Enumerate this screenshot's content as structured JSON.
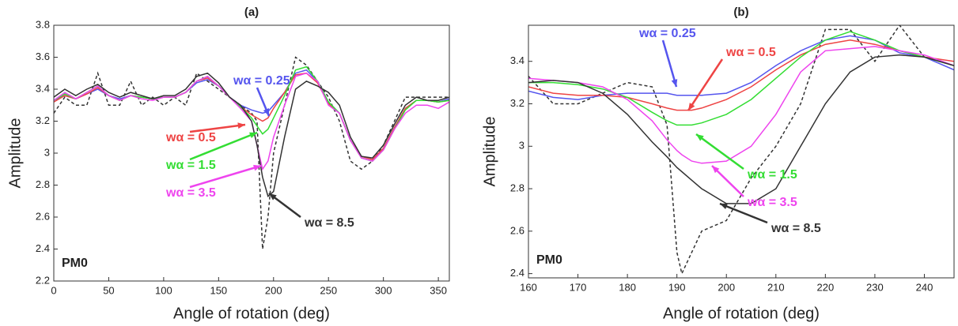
{
  "chart_data": [
    {
      "type": "line",
      "title": "(a)",
      "x_label": "Angle of rotation (deg)",
      "y_label": "Amplitude",
      "annotation": "PM0",
      "xlim": [
        0,
        360
      ],
      "xticks": [
        0,
        50,
        100,
        150,
        200,
        250,
        300,
        350
      ],
      "ylim": [
        2.2,
        3.8
      ],
      "yticks": [
        2.2,
        2.4,
        2.6,
        2.8,
        3,
        3.2,
        3.4,
        3.6,
        3.8
      ],
      "x": [
        0,
        10,
        20,
        30,
        40,
        50,
        60,
        70,
        80,
        90,
        100,
        110,
        120,
        130,
        140,
        150,
        160,
        170,
        180,
        185,
        190,
        195,
        200,
        210,
        220,
        230,
        240,
        250,
        260,
        270,
        280,
        290,
        300,
        310,
        320,
        330,
        340,
        350,
        360
      ],
      "series": [
        {
          "color": "#333333",
          "style": "dashed",
          "values": [
            3.25,
            3.35,
            3.3,
            3.3,
            3.5,
            3.3,
            3.3,
            3.45,
            3.3,
            3.35,
            3.3,
            3.35,
            3.3,
            3.5,
            3.45,
            3.4,
            3.35,
            3.3,
            3.25,
            3.2,
            2.4,
            2.6,
            3.0,
            3.3,
            3.6,
            3.55,
            3.45,
            3.35,
            3.2,
            2.95,
            2.9,
            2.95,
            3.05,
            3.2,
            3.35,
            3.35,
            3.35,
            3.35,
            3.35
          ]
        },
        {
          "name": "wα = 0.25",
          "color": "#5555ee",
          "style": "solid",
          "values": [
            3.33,
            3.36,
            3.34,
            3.37,
            3.4,
            3.36,
            3.34,
            3.36,
            3.35,
            3.34,
            3.35,
            3.35,
            3.38,
            3.44,
            3.46,
            3.42,
            3.35,
            3.3,
            3.27,
            3.26,
            3.25,
            3.26,
            3.3,
            3.38,
            3.5,
            3.52,
            3.45,
            3.32,
            3.25,
            3.08,
            2.98,
            2.96,
            3.03,
            3.16,
            3.28,
            3.33,
            3.33,
            3.32,
            3.34
          ]
        },
        {
          "name": "wα = 0.5",
          "color": "#ee4444",
          "style": "solid",
          "values": [
            3.32,
            3.36,
            3.34,
            3.37,
            3.41,
            3.36,
            3.33,
            3.36,
            3.35,
            3.34,
            3.35,
            3.35,
            3.38,
            3.45,
            3.47,
            3.42,
            3.35,
            3.29,
            3.24,
            3.22,
            3.2,
            3.22,
            3.28,
            3.38,
            3.49,
            3.5,
            3.44,
            3.31,
            3.25,
            3.08,
            2.98,
            2.96,
            3.03,
            3.16,
            3.28,
            3.33,
            3.33,
            3.32,
            3.33
          ]
        },
        {
          "name": "wα = 1.5",
          "color": "#33dd33",
          "style": "solid",
          "values": [
            3.33,
            3.37,
            3.34,
            3.38,
            3.42,
            3.36,
            3.33,
            3.36,
            3.35,
            3.34,
            3.35,
            3.35,
            3.38,
            3.45,
            3.48,
            3.42,
            3.35,
            3.29,
            3.22,
            3.17,
            3.12,
            3.15,
            3.22,
            3.36,
            3.52,
            3.54,
            3.45,
            3.32,
            3.25,
            3.08,
            2.97,
            2.95,
            3.02,
            3.15,
            3.27,
            3.33,
            3.33,
            3.32,
            3.33
          ]
        },
        {
          "name": "wα = 3.5",
          "color": "#ee44ee",
          "style": "solid",
          "values": [
            3.33,
            3.38,
            3.34,
            3.38,
            3.42,
            3.36,
            3.33,
            3.36,
            3.34,
            3.33,
            3.35,
            3.35,
            3.38,
            3.45,
            3.48,
            3.42,
            3.35,
            3.28,
            3.2,
            3.05,
            2.9,
            2.95,
            3.1,
            3.3,
            3.48,
            3.5,
            3.45,
            3.3,
            3.25,
            3.08,
            2.97,
            2.95,
            3.02,
            3.15,
            3.25,
            3.3,
            3.3,
            3.28,
            3.32
          ]
        },
        {
          "name": "wα = 8.5",
          "color": "#333333",
          "style": "solid",
          "values": [
            3.35,
            3.4,
            3.36,
            3.4,
            3.43,
            3.38,
            3.35,
            3.38,
            3.36,
            3.34,
            3.36,
            3.36,
            3.4,
            3.48,
            3.5,
            3.44,
            3.35,
            3.3,
            3.2,
            3.05,
            2.85,
            2.73,
            2.76,
            3.1,
            3.4,
            3.45,
            3.42,
            3.38,
            3.3,
            3.1,
            2.98,
            2.97,
            3.05,
            3.18,
            3.3,
            3.35,
            3.33,
            3.33,
            3.35
          ]
        }
      ]
    },
    {
      "type": "line",
      "title": "(b)",
      "x_label": "Angle of rotation (deg)",
      "y_label": "Amplitude",
      "annotation": "PM0",
      "xlim": [
        160,
        246
      ],
      "xticks": [
        160,
        170,
        180,
        190,
        200,
        210,
        220,
        230,
        240
      ],
      "ylim": [
        2.38,
        3.57
      ],
      "yticks": [
        2.4,
        2.6,
        2.8,
        3,
        3.2,
        3.4
      ],
      "x": [
        160,
        165,
        170,
        175,
        180,
        185,
        188,
        190,
        191,
        193,
        195,
        200,
        205,
        210,
        215,
        220,
        225,
        230,
        235,
        240,
        246
      ],
      "series": [
        {
          "color": "#333333",
          "style": "dashed",
          "values": [
            3.33,
            3.2,
            3.2,
            3.25,
            3.3,
            3.28,
            3.1,
            2.5,
            2.4,
            2.5,
            2.6,
            2.65,
            2.85,
            3.0,
            3.2,
            3.55,
            3.55,
            3.4,
            3.57,
            3.42,
            3.38
          ]
        },
        {
          "name": "wα = 0.25",
          "color": "#5555ee",
          "style": "solid",
          "values": [
            3.26,
            3.23,
            3.22,
            3.24,
            3.25,
            3.25,
            3.25,
            3.24,
            3.24,
            3.24,
            3.24,
            3.25,
            3.3,
            3.38,
            3.45,
            3.5,
            3.52,
            3.5,
            3.44,
            3.42,
            3.36
          ]
        },
        {
          "name": "wα = 0.5",
          "color": "#ee4444",
          "style": "solid",
          "values": [
            3.28,
            3.25,
            3.24,
            3.24,
            3.23,
            3.2,
            3.18,
            3.17,
            3.17,
            3.17,
            3.18,
            3.22,
            3.28,
            3.36,
            3.43,
            3.48,
            3.5,
            3.48,
            3.45,
            3.42,
            3.4
          ]
        },
        {
          "name": "wα = 1.5",
          "color": "#33dd33",
          "style": "solid",
          "values": [
            3.3,
            3.3,
            3.29,
            3.27,
            3.23,
            3.16,
            3.12,
            3.1,
            3.1,
            3.1,
            3.11,
            3.15,
            3.22,
            3.32,
            3.42,
            3.5,
            3.54,
            3.5,
            3.45,
            3.42,
            3.38
          ]
        },
        {
          "name": "wα = 3.5",
          "color": "#ee44ee",
          "style": "solid",
          "values": [
            3.32,
            3.31,
            3.3,
            3.28,
            3.22,
            3.12,
            3.03,
            2.98,
            2.96,
            2.93,
            2.92,
            2.93,
            3.0,
            3.15,
            3.35,
            3.45,
            3.46,
            3.47,
            3.45,
            3.43,
            3.38
          ]
        },
        {
          "name": "wα = 8.5",
          "color": "#333333",
          "style": "solid",
          "values": [
            3.3,
            3.31,
            3.3,
            3.25,
            3.15,
            3.02,
            2.95,
            2.9,
            2.88,
            2.84,
            2.8,
            2.73,
            2.73,
            2.8,
            3.0,
            3.2,
            3.35,
            3.42,
            3.43,
            3.42,
            3.38
          ]
        }
      ]
    }
  ]
}
